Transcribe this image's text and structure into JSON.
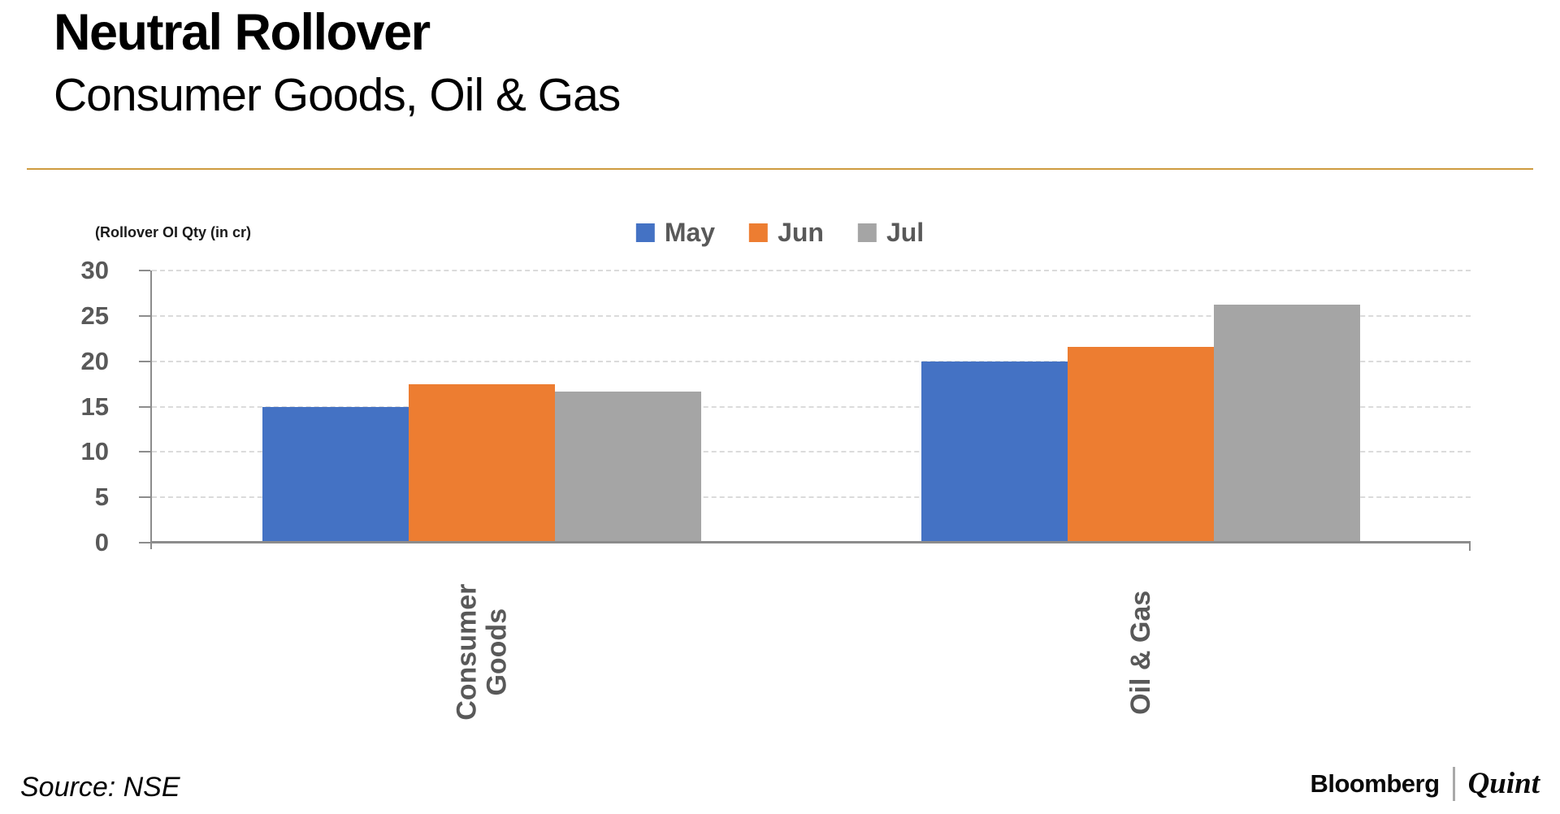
{
  "header": {
    "title": "Neutral Rollover",
    "subtitle": "Consumer Goods, Oil & Gas",
    "divider_color": "#CE9B3F"
  },
  "chart_data": {
    "type": "bar",
    "title": "Neutral Rollover",
    "subtitle": "Consumer Goods, Oil & Gas",
    "axis_title": "(Rollover OI Qty (in cr)",
    "categories": [
      "Consumer Goods",
      "Oil & Gas"
    ],
    "categories_display": [
      [
        "Consumer",
        "Goods"
      ],
      [
        "Oil & Gas"
      ]
    ],
    "series": [
      {
        "name": "May",
        "color": "#4472C4",
        "values": [
          15.0,
          20.0
        ]
      },
      {
        "name": "Jun",
        "color": "#ED7D31",
        "values": [
          17.5,
          21.6
        ]
      },
      {
        "name": "Jul",
        "color": "#A5A5A5",
        "values": [
          16.7,
          26.2
        ]
      }
    ],
    "ylim": [
      0,
      30
    ],
    "yticks": [
      0,
      5,
      10,
      15,
      20,
      25,
      30
    ],
    "grid": "horizontal-dashed",
    "gridline_color": "#DBDBDB",
    "axis_line_color": "#8C8C8C",
    "tick_label_color": "#595959",
    "legend_position": "top-center"
  },
  "footer": {
    "source": "Source: NSE",
    "brand": {
      "part1": "Bloomberg",
      "part2": "Quint"
    }
  }
}
